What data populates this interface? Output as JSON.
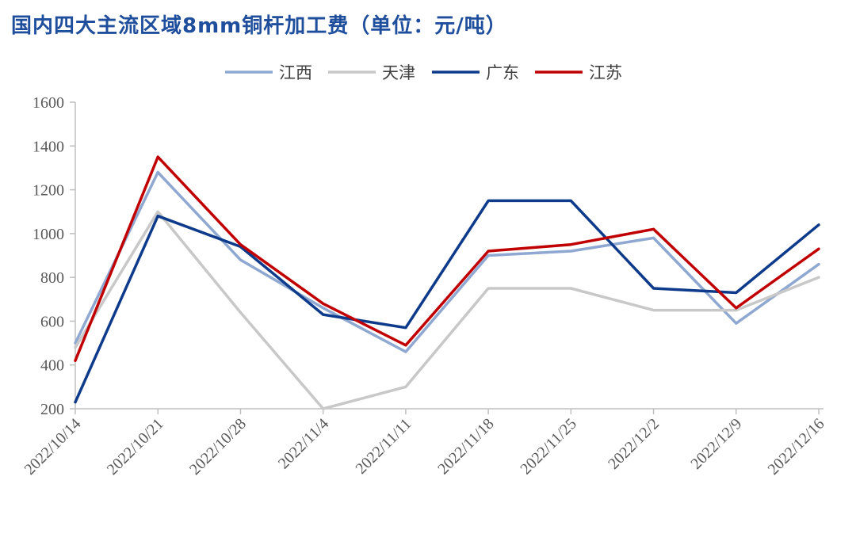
{
  "title": "国内四大主流区域8mm铜杆加工费（单位：元/吨）",
  "chart_data": {
    "type": "line",
    "title": "国内四大主流区域8mm铜杆加工费（单位：元/吨）",
    "x": [
      "2022/10/14",
      "2022/10/21",
      "2022/10/28",
      "2022/11/4",
      "2022/11/11",
      "2022/11/18",
      "2022/11/25",
      "2022/12/2",
      "2022/12/9",
      "2022/12/16"
    ],
    "ylim": [
      200,
      1600
    ],
    "yticks": [
      200,
      400,
      600,
      800,
      1000,
      1200,
      1400,
      1600
    ],
    "grid": false,
    "legend": "top-center",
    "series": [
      {
        "name": "江西",
        "color": "#8fa8d1",
        "values": [
          500,
          1280,
          880,
          660,
          460,
          900,
          920,
          980,
          590,
          860
        ]
      },
      {
        "name": "天津",
        "color": "#c8c8c8",
        "values": [
          480,
          1100,
          640,
          200,
          300,
          750,
          750,
          650,
          650,
          800
        ]
      },
      {
        "name": "广东",
        "color": "#0d3a8a",
        "values": [
          230,
          1080,
          940,
          630,
          570,
          1150,
          1150,
          750,
          730,
          1040
        ]
      },
      {
        "name": "江苏",
        "color": "#c00000",
        "values": [
          420,
          1350,
          950,
          680,
          490,
          920,
          950,
          1020,
          660,
          930
        ]
      }
    ]
  }
}
